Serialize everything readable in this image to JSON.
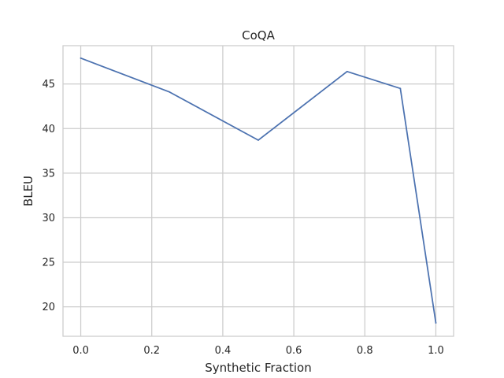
{
  "chart_data": {
    "type": "line",
    "title": "CoQA",
    "xlabel": "Synthetic Fraction",
    "ylabel": "BLEU",
    "xlim": [
      -0.05,
      1.05
    ],
    "ylim": [
      16.7,
      49.3
    ],
    "xticks": [
      0.0,
      0.2,
      0.4,
      0.6,
      0.8,
      1.0
    ],
    "xtick_labels": [
      "0.0",
      "0.2",
      "0.4",
      "0.6",
      "0.8",
      "1.0"
    ],
    "yticks": [
      20,
      25,
      30,
      35,
      40,
      45
    ],
    "ytick_labels": [
      "20",
      "25",
      "30",
      "35",
      "40",
      "45"
    ],
    "grid": true,
    "series": [
      {
        "x": [
          0.0,
          0.25,
          0.5,
          0.75,
          0.9,
          1.0
        ],
        "y": [
          47.9,
          44.1,
          38.7,
          46.4,
          44.5,
          18.2
        ],
        "color": "#4c72b0"
      }
    ]
  }
}
